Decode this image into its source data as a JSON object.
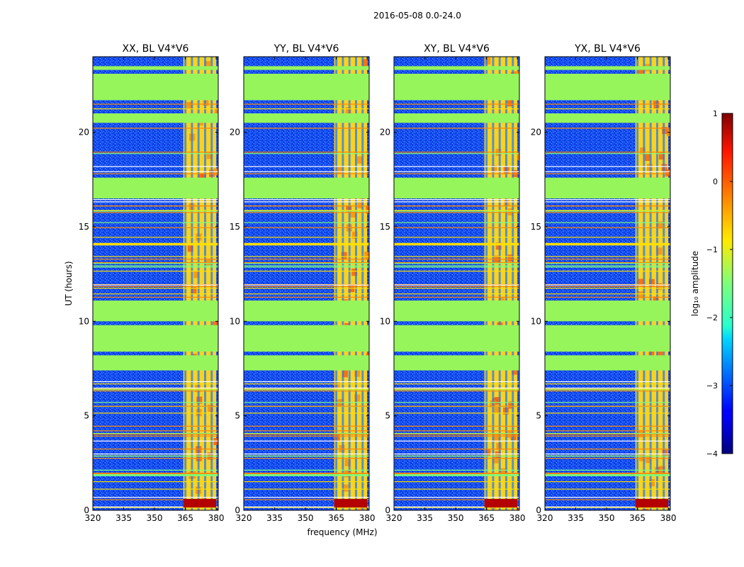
{
  "figure_title": "2016-05-08 0.0-24.0",
  "chart_data": {
    "type": "heatmap",
    "suptitle": "2016-05-08 0.0-24.0",
    "shared_xlabel": "frequency (MHz)",
    "shared_ylabel": "UT (hours)",
    "xlim": [
      320,
      381
    ],
    "ylim": [
      0,
      24
    ],
    "xticks": [
      "320",
      "335",
      "350",
      "365",
      "380"
    ],
    "yticks": [
      "0",
      "5",
      "10",
      "15",
      "20"
    ],
    "panels": [
      {
        "title": "XX, BL V4*V6",
        "polarization": "XX"
      },
      {
        "title": "YY, BL V4*V6",
        "polarization": "YY"
      },
      {
        "title": "XY, BL V4*V6",
        "polarization": "XY"
      },
      {
        "title": "YX, BL V4*V6",
        "polarization": "YX"
      }
    ],
    "flagged_ut_bands_hours": [
      [
        21.7,
        23.1
      ],
      [
        20.5,
        21.0
      ],
      [
        16.5,
        17.6
      ],
      [
        10.0,
        11.1
      ],
      [
        8.4,
        9.8
      ],
      [
        7.4,
        8.2
      ],
      [
        23.3,
        23.5
      ]
    ],
    "active_frequency_band_mhz": [
      364,
      380
    ],
    "colorbar": {
      "label": "log₁₀ amplitude",
      "range": [
        -4,
        1
      ],
      "ticks": [
        "1",
        "0",
        "−1",
        "−2",
        "−3",
        "−4"
      ],
      "colormap": "jet"
    }
  }
}
